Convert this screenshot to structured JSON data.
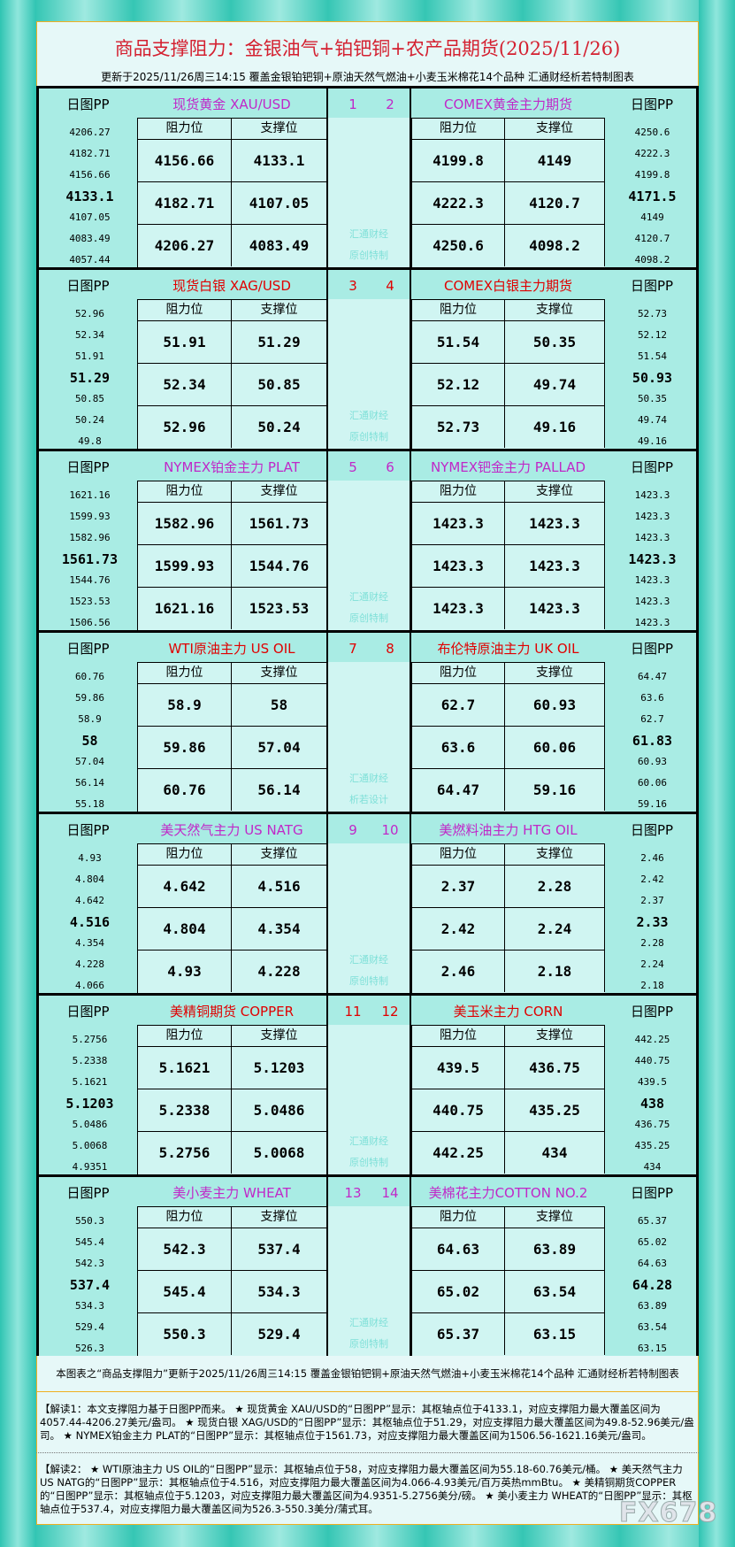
{
  "header": {
    "title": "商品支撑阻力：金银油气+铂钯铜+农产品期货(2025/11/26)",
    "subtitle": "更新于2025/11/26周三14:15  覆盖金银铂钯铜+原油天然气燃油+小麦玉米棉花14个品种  汇通财经析若特制图表"
  },
  "labels": {
    "pp": "日图PP",
    "resistance": "阻力位",
    "support": "支撑位"
  },
  "colors": {
    "purple": "#c028c8",
    "red": "#e00000",
    "cell": "#d0f5f2",
    "panel": "#a9ece4"
  },
  "blocks": [
    {
      "nums": [
        "1",
        "2"
      ],
      "wm": [
        "汇通财经",
        "原创特制"
      ],
      "left": {
        "title": "现货黄金  XAU/USD",
        "color": "#c028c8",
        "r": [
          "4156.66",
          "4182.71",
          "4206.27"
        ],
        "s": [
          "4133.1",
          "4107.05",
          "4083.49"
        ],
        "pp": [
          "4206.27",
          "4182.71",
          "4156.66",
          "4133.1",
          "4107.05",
          "4083.49",
          "4057.44"
        ]
      },
      "right": {
        "title": "COMEX黄金主力期货",
        "color": "#c028c8",
        "r": [
          "4199.8",
          "4222.3",
          "4250.6"
        ],
        "s": [
          "4149",
          "4120.7",
          "4098.2"
        ],
        "pp": [
          "4250.6",
          "4222.3",
          "4199.8",
          "4171.5",
          "4149",
          "4120.7",
          "4098.2"
        ]
      }
    },
    {
      "nums": [
        "3",
        "4"
      ],
      "wm": [
        "汇通财经",
        "原创特制"
      ],
      "left": {
        "title": "现货白银  XAG/USD",
        "color": "#e00000",
        "r": [
          "51.91",
          "52.34",
          "52.96"
        ],
        "s": [
          "51.29",
          "50.85",
          "50.24"
        ],
        "pp": [
          "52.96",
          "52.34",
          "51.91",
          "51.29",
          "50.85",
          "50.24",
          "49.8"
        ]
      },
      "right": {
        "title": "COMEX白银主力期货",
        "color": "#e00000",
        "r": [
          "51.54",
          "52.12",
          "52.73"
        ],
        "s": [
          "50.35",
          "49.74",
          "49.16"
        ],
        "pp": [
          "52.73",
          "52.12",
          "51.54",
          "50.93",
          "50.35",
          "49.74",
          "49.16"
        ]
      }
    },
    {
      "nums": [
        "5",
        "6"
      ],
      "wm": [
        "汇通财经",
        "原创特制"
      ],
      "left": {
        "title": "NYMEX铂金主力  PLAT",
        "color": "#c028c8",
        "r": [
          "1582.96",
          "1599.93",
          "1621.16"
        ],
        "s": [
          "1561.73",
          "1544.76",
          "1523.53"
        ],
        "pp": [
          "1621.16",
          "1599.93",
          "1582.96",
          "1561.73",
          "1544.76",
          "1523.53",
          "1506.56"
        ]
      },
      "right": {
        "title": "NYMEX钯金主力  PALLAD",
        "color": "#c028c8",
        "r": [
          "1423.3",
          "1423.3",
          "1423.3"
        ],
        "s": [
          "1423.3",
          "1423.3",
          "1423.3"
        ],
        "pp": [
          "1423.3",
          "1423.3",
          "1423.3",
          "1423.3",
          "1423.3",
          "1423.3",
          "1423.3"
        ]
      }
    },
    {
      "nums": [
        "7",
        "8"
      ],
      "wm": [
        "汇通财经",
        "析若设计"
      ],
      "left": {
        "title": "WTI原油主力  US OIL",
        "color": "#e00000",
        "r": [
          "58.9",
          "59.86",
          "60.76"
        ],
        "s": [
          "58",
          "57.04",
          "56.14"
        ],
        "pp": [
          "60.76",
          "59.86",
          "58.9",
          "58",
          "57.04",
          "56.14",
          "55.18"
        ]
      },
      "right": {
        "title": "布伦特原油主力  UK OIL",
        "color": "#e00000",
        "r": [
          "62.7",
          "63.6",
          "64.47"
        ],
        "s": [
          "60.93",
          "60.06",
          "59.16"
        ],
        "pp": [
          "64.47",
          "63.6",
          "62.7",
          "61.83",
          "60.93",
          "60.06",
          "59.16"
        ]
      }
    },
    {
      "nums": [
        "9",
        "10"
      ],
      "wm": [
        "汇通财经",
        "原创特制"
      ],
      "left": {
        "title": "美天然气主力  US NATG",
        "color": "#c028c8",
        "r": [
          "4.642",
          "4.804",
          "4.93"
        ],
        "s": [
          "4.516",
          "4.354",
          "4.228"
        ],
        "pp": [
          "4.93",
          "4.804",
          "4.642",
          "4.516",
          "4.354",
          "4.228",
          "4.066"
        ]
      },
      "right": {
        "title": "美燃料油主力  HTG OIL",
        "color": "#c028c8",
        "r": [
          "2.37",
          "2.42",
          "2.46"
        ],
        "s": [
          "2.28",
          "2.24",
          "2.18"
        ],
        "pp": [
          "2.46",
          "2.42",
          "2.37",
          "2.33",
          "2.28",
          "2.24",
          "2.18"
        ]
      }
    },
    {
      "nums": [
        "11",
        "12"
      ],
      "wm": [
        "汇通财经",
        "原创特制"
      ],
      "left": {
        "title": "美精铜期货  COPPER",
        "color": "#e00000",
        "r": [
          "5.1621",
          "5.2338",
          "5.2756"
        ],
        "s": [
          "5.1203",
          "5.0486",
          "5.0068"
        ],
        "pp": [
          "5.2756",
          "5.2338",
          "5.1621",
          "5.1203",
          "5.0486",
          "5.0068",
          "4.9351"
        ]
      },
      "right": {
        "title": "美玉米主力  CORN",
        "color": "#e00000",
        "r": [
          "439.5",
          "440.75",
          "442.25"
        ],
        "s": [
          "436.75",
          "435.25",
          "434"
        ],
        "pp": [
          "442.25",
          "440.75",
          "439.5",
          "438",
          "436.75",
          "435.25",
          "434"
        ]
      }
    },
    {
      "nums": [
        "13",
        "14"
      ],
      "wm": [
        "汇通财经",
        "原创特制"
      ],
      "left": {
        "title": "美小麦主力  WHEAT",
        "color": "#c028c8",
        "r": [
          "542.3",
          "545.4",
          "550.3"
        ],
        "s": [
          "537.4",
          "534.3",
          "529.4"
        ],
        "pp": [
          "550.3",
          "545.4",
          "542.3",
          "537.4",
          "534.3",
          "529.4",
          "526.3"
        ]
      },
      "right": {
        "title": "美棉花主力COTTON NO.2",
        "color": "#c028c8",
        "r": [
          "64.63",
          "65.02",
          "65.37"
        ],
        "s": [
          "63.89",
          "63.54",
          "63.15"
        ],
        "pp": [
          "65.37",
          "65.02",
          "64.63",
          "64.28",
          "63.89",
          "63.54",
          "63.15"
        ]
      }
    }
  ],
  "footer": {
    "summary": "本图表之“商品支撑阻力”更新于2025/11/26周三14:15 覆盖金银铂钯铜+原油天然气燃油+小麦玉米棉花14个品种 汇通财经析若特制图表",
    "explain1": "【解读1：本文支撑阻力基于日图PP而来。 ★ 现货黄金 XAU/USD的“日图PP”显示：其枢轴点位于4133.1，对应支撑阻力最大覆盖区间为4057.44-4206.27美元/盎司。 ★ 现货白银 XAG/USD的“日图PP”显示：其枢轴点位于51.29，对应支撑阻力最大覆盖区间为49.8-52.96美元/盎司。 ★ NYMEX铂金主力 PLAT的“日图PP”显示：其枢轴点位于1561.73，对应支撑阻力最大覆盖区间为1506.56-1621.16美元/盎司。",
    "explain2": "【解读2： ★ WTI原油主力 US OIL的“日图PP”显示：其枢轴点位于58，对应支撑阻力最大覆盖区间为55.18-60.76美元/桶。 ★ 美天然气主力 US NATG的“日图PP”显示：其枢轴点位于4.516，对应支撑阻力最大覆盖区间为4.066-4.93美元/百万英热mmBtu。 ★ 美精铜期货COPPER的“日图PP”显示：其枢轴点位于5.1203，对应支撑阻力最大覆盖区间为4.9351-5.2756美分/磅。 ★ 美小麦主力 WHEAT的“日图PP”显示：其枢轴点位于537.4，对应支撑阻力最大覆盖区间为526.3-550.3美分/蒲式耳。",
    "watermark": "FX678"
  }
}
